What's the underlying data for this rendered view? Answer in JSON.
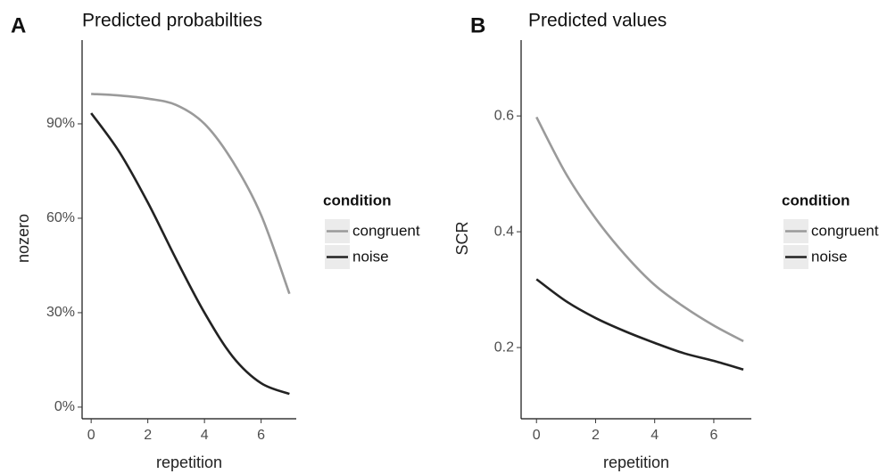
{
  "chart_data": [
    {
      "type": "line",
      "panel_label": "A",
      "title": "Predicted probabilties",
      "x_label": "repetition",
      "y_label": "nozero",
      "x": [
        0,
        1,
        2,
        3,
        4,
        5,
        6,
        7
      ],
      "series": [
        {
          "name": "congruent",
          "color": "#9a9a9a",
          "values": [
            99.5,
            99,
            98,
            96,
            90,
            78,
            61,
            36
          ]
        },
        {
          "name": "noise",
          "color": "#222222",
          "values": [
            93.4,
            81,
            65,
            47,
            30,
            16,
            7.6,
            4.2
          ]
        }
      ],
      "xlim": [
        -0.32,
        7.24
      ],
      "xticks": [
        0,
        2,
        4,
        6
      ],
      "ylim": [
        -3.7,
        116.6
      ],
      "yticks": [
        {
          "value": 0,
          "label": "0%"
        },
        {
          "value": 30,
          "label": "30%"
        },
        {
          "value": 60,
          "label": "60%"
        },
        {
          "value": 90,
          "label": "90%"
        }
      ],
      "legend_title": "condition",
      "legend": "right",
      "grid": false
    },
    {
      "type": "line",
      "panel_label": "B",
      "title": "Predicted values",
      "x_label": "repetition",
      "y_label": "SCR",
      "x": [
        0,
        1,
        2,
        3,
        4,
        5,
        6,
        7
      ],
      "series": [
        {
          "name": "congruent",
          "color": "#9a9a9a",
          "values": [
            0.598,
            0.5,
            0.423,
            0.36,
            0.308,
            0.27,
            0.238,
            0.211
          ]
        },
        {
          "name": "noise",
          "color": "#222222",
          "values": [
            0.318,
            0.28,
            0.251,
            0.228,
            0.208,
            0.19,
            0.177,
            0.162
          ]
        }
      ],
      "xlim": [
        -0.52,
        7.27
      ],
      "xticks": [
        0,
        2,
        4,
        6
      ],
      "ylim": [
        0.077,
        0.731
      ],
      "yticks": [
        0.2,
        0.4,
        0.6
      ],
      "legend_title": "condition",
      "legend": "right",
      "grid": false
    }
  ]
}
